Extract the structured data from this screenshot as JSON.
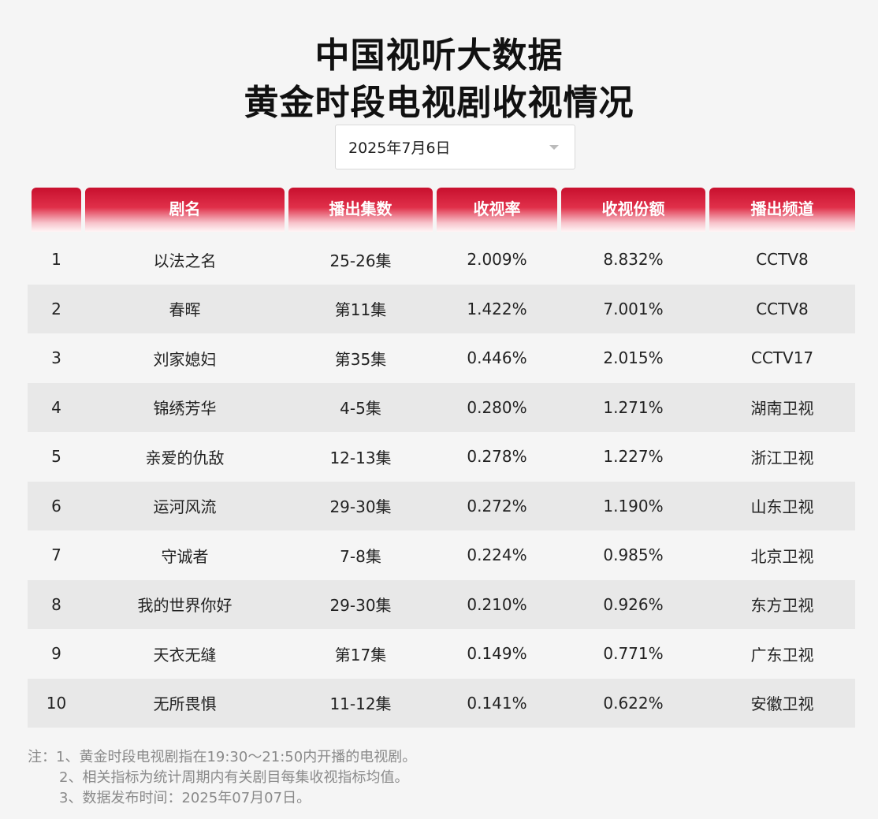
{
  "title_line1": "中国视听大数据",
  "title_line2": "黄金时段电视剧收视情况",
  "date_select": {
    "value": "2025年7月6日"
  },
  "table": {
    "headers": [
      "",
      "剧名",
      "播出集数",
      "收视率",
      "收视份额",
      "播出频道"
    ],
    "rows": [
      [
        "1",
        "以法之名",
        "25-26集",
        "2.009%",
        "8.832%",
        "CCTV8"
      ],
      [
        "2",
        "春晖",
        "第11集",
        "1.422%",
        "7.001%",
        "CCTV8"
      ],
      [
        "3",
        "刘家媳妇",
        "第35集",
        "0.446%",
        "2.015%",
        "CCTV17"
      ],
      [
        "4",
        "锦绣芳华",
        "4-5集",
        "0.280%",
        "1.271%",
        "湖南卫视"
      ],
      [
        "5",
        "亲爱的仇敌",
        "12-13集",
        "0.278%",
        "1.227%",
        "浙江卫视"
      ],
      [
        "6",
        "运河风流",
        "29-30集",
        "0.272%",
        "1.190%",
        "山东卫视"
      ],
      [
        "7",
        "守诚者",
        "7-8集",
        "0.224%",
        "0.985%",
        "北京卫视"
      ],
      [
        "8",
        "我的世界你好",
        "29-30集",
        "0.210%",
        "0.926%",
        "东方卫视"
      ],
      [
        "9",
        "天衣无缝",
        "第17集",
        "0.149%",
        "0.771%",
        "广东卫视"
      ],
      [
        "10",
        "无所畏惧",
        "11-12集",
        "0.141%",
        "0.622%",
        "安徽卫视"
      ]
    ]
  },
  "notes": [
    "注：1、黄金时段电视剧指在19:30～21:50内开播的电视剧。",
    "2、相关指标为统计周期内有关剧目每集收视指标均值。",
    "3、数据发布时间：2025年07月07日。"
  ]
}
